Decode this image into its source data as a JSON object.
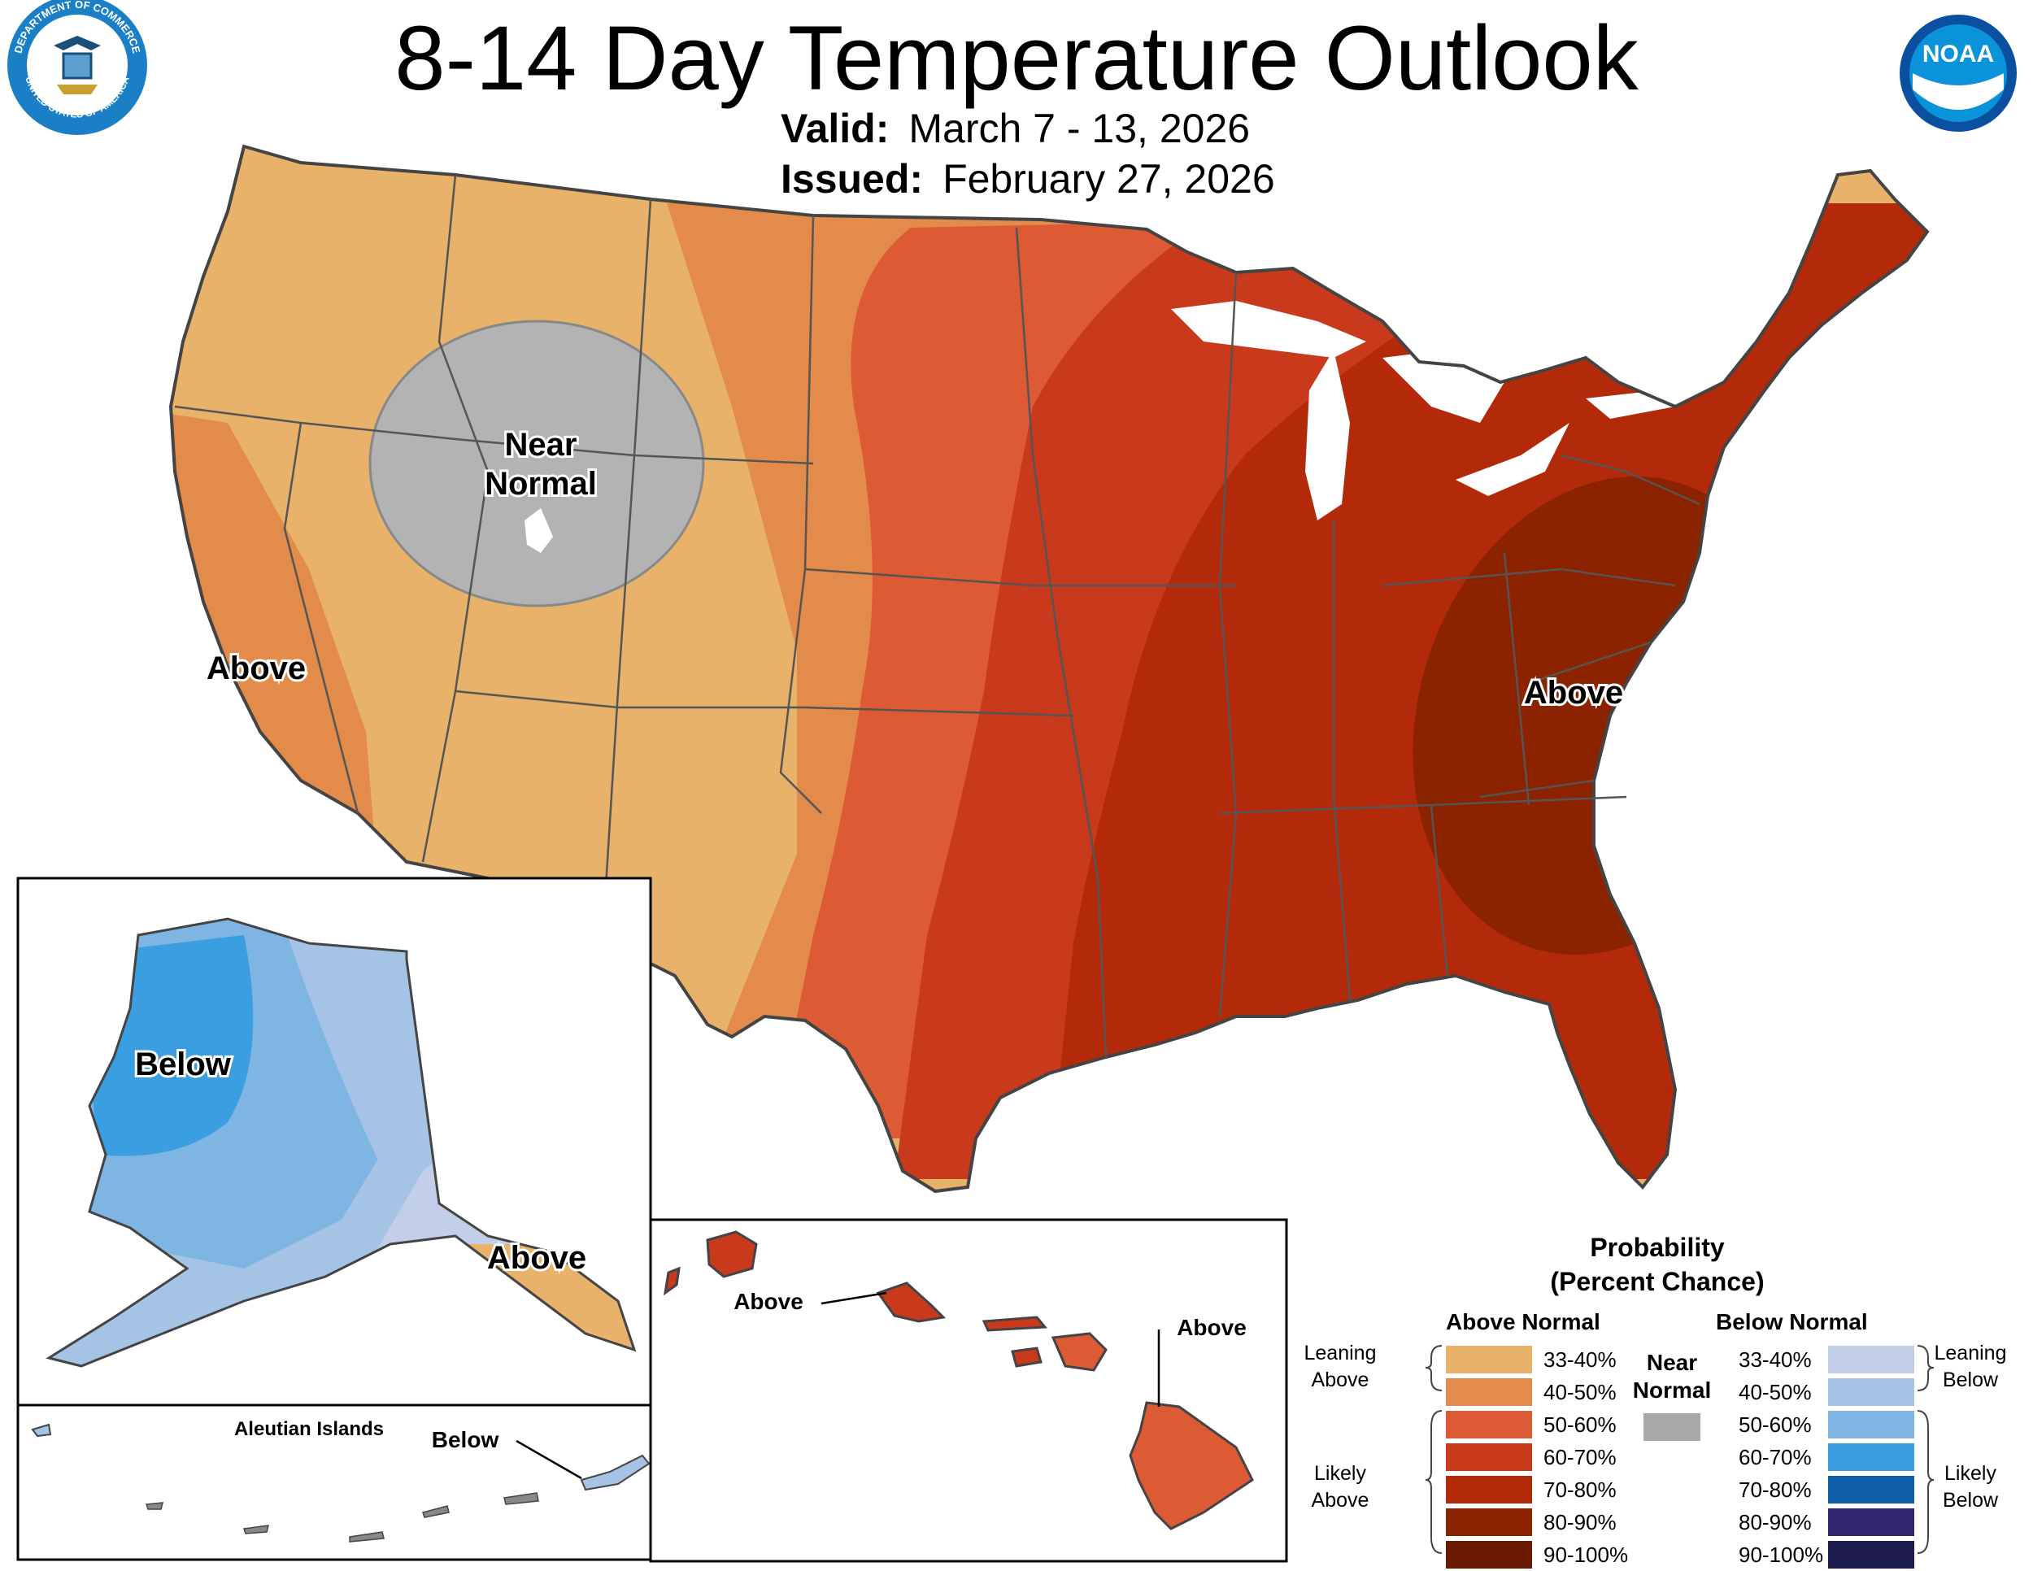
{
  "header": {
    "title": "8-14 Day Temperature Outlook",
    "valid_label": "Valid:",
    "valid_value": "March 7 - 13, 2026",
    "issued_label": "Issued:",
    "issued_value": "February 27, 2026"
  },
  "logos": {
    "left": "department-of-commerce-seal",
    "left_seal_top_text": "DEPARTMENT OF COMMERCE",
    "left_seal_bottom_text": "UNITED STATES OF AMERICA",
    "right": "noaa-logo",
    "right_text": "NOAA"
  },
  "map_labels": {
    "near_normal_line1": "Near",
    "near_normal_line2": "Normal",
    "west_coast_above": "Above",
    "southeast_above": "Above",
    "alaska_below": "Below",
    "alaska_panhandle_above": "Above",
    "aleutian_title": "Aleutian Islands",
    "aleutian_below": "Below",
    "hawaii_above_left": "Above",
    "hawaii_above_right": "Above"
  },
  "colors": {
    "above_33_40": "#E8B26A",
    "above_40_50": "#E28B4A",
    "above_50_60": "#DC5A34",
    "above_60_70": "#C9391C",
    "above_70_80": "#B22A0A",
    "above_80_90": "#8C2300",
    "above_90_100": "#6A1A00",
    "near_normal": "#A9A9A9",
    "below_33_40": "#C3CEE8",
    "below_40_50": "#A5C3E4",
    "below_50_60": "#7EB5E3",
    "below_60_70": "#3B9EE0",
    "below_70_80": "#0F5EA8",
    "below_80_90": "#32266F",
    "below_90_100": "#1E1B4F"
  },
  "legend": {
    "title_line1": "Probability",
    "title_line2": "(Percent Chance)",
    "above_header": "Above Normal",
    "below_header": "Below Normal",
    "near_normal_line1": "Near",
    "near_normal_line2": "Normal",
    "leaning_above_line1": "Leaning",
    "leaning_above_line2": "Above",
    "likely_above_line1": "Likely",
    "likely_above_line2": "Above",
    "leaning_below_line1": "Leaning",
    "leaning_below_line2": "Below",
    "likely_below_line1": "Likely",
    "likely_below_line2": "Below",
    "above_items": [
      {
        "label": "33-40%",
        "color": "#E8B26A"
      },
      {
        "label": "40-50%",
        "color": "#E28B4A"
      },
      {
        "label": "50-60%",
        "color": "#DC5A34"
      },
      {
        "label": "60-70%",
        "color": "#C9391C"
      },
      {
        "label": "70-80%",
        "color": "#B22A0A"
      },
      {
        "label": "80-90%",
        "color": "#8C2300"
      },
      {
        "label": "90-100%",
        "color": "#6A1A00"
      }
    ],
    "below_items": [
      {
        "label": "33-40%",
        "color": "#C3CEE8"
      },
      {
        "label": "40-50%",
        "color": "#A5C3E4"
      },
      {
        "label": "50-60%",
        "color": "#7EB5E3"
      },
      {
        "label": "60-70%",
        "color": "#3B9EE0"
      },
      {
        "label": "70-80%",
        "color": "#0F5EA8"
      },
      {
        "label": "80-90%",
        "color": "#32266F"
      },
      {
        "label": "90-100%",
        "color": "#1E1B4F"
      }
    ]
  }
}
